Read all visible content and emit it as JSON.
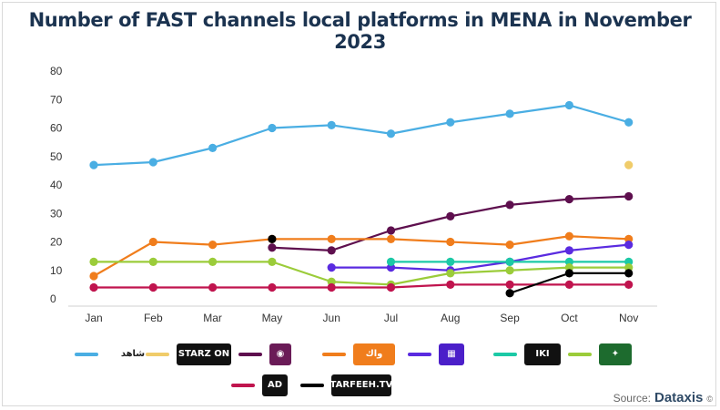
{
  "title": "Number of FAST channels local platforms in MENA in November 2023",
  "source": {
    "label": "Source:",
    "brand": "Dataxis",
    "mark": "©"
  },
  "chart_data": {
    "type": "line",
    "title": "Number of FAST channels local platforms in MENA in November 2023",
    "categories": [
      "Jan",
      "Feb",
      "Mar",
      "May",
      "Jun",
      "Jul",
      "Aug",
      "Sep",
      "Oct",
      "Nov"
    ],
    "ylim": [
      0,
      80
    ],
    "yticks": [
      0,
      10,
      20,
      30,
      40,
      50,
      60,
      70,
      80
    ],
    "grid": false,
    "legend_position": "bottom",
    "series": [
      {
        "id": "shahid",
        "color": "#4aaee3",
        "values": [
          47,
          48,
          53,
          60,
          61,
          58,
          62,
          65,
          68,
          62
        ]
      },
      {
        "id": "starzon",
        "color": "#f0cc6a",
        "values": [
          null,
          null,
          null,
          null,
          null,
          null,
          null,
          null,
          null,
          47
        ]
      },
      {
        "id": "purple_brand",
        "color": "#5e0f4e",
        "values": [
          null,
          null,
          null,
          18,
          17,
          24,
          29,
          33,
          35,
          36
        ]
      },
      {
        "id": "orange_brand",
        "color": "#f07d1c",
        "values": [
          8,
          20,
          19,
          21,
          21,
          21,
          20,
          19,
          22,
          21
        ]
      },
      {
        "id": "indigo_brand",
        "color": "#5a2be0",
        "values": [
          null,
          null,
          null,
          null,
          11,
          11,
          10,
          13,
          17,
          19
        ]
      },
      {
        "id": "teal_brand",
        "color": "#1cc9a6",
        "values": [
          null,
          null,
          null,
          null,
          null,
          13,
          13,
          13,
          13,
          13
        ]
      },
      {
        "id": "green_brand",
        "color": "#9bcc3a",
        "values": [
          13,
          13,
          13,
          13,
          6,
          5,
          9,
          10,
          11,
          11
        ]
      },
      {
        "id": "ad",
        "color": "#c0144e",
        "values": [
          4,
          4,
          4,
          4,
          4,
          4,
          5,
          5,
          5,
          5
        ]
      },
      {
        "id": "tarfeeh",
        "color": "#000000",
        "values": [
          null,
          null,
          null,
          21,
          null,
          null,
          null,
          2,
          9,
          9
        ]
      }
    ]
  },
  "legend": [
    {
      "series": "shahid",
      "logo_text": "شاهد",
      "logo_bg": "#ffffff",
      "logo_fg": "#1a1a1a"
    },
    {
      "series": "starzon",
      "logo_text": "STARZ ON",
      "logo_bg": "#111111",
      "logo_fg": "#ffffff"
    },
    {
      "series": "purple_brand",
      "logo_text": "◉",
      "logo_bg": "#6a1b57",
      "logo_fg": "#ffffff"
    },
    {
      "series": "orange_brand",
      "logo_text": "واك",
      "logo_bg": "#f07d1c",
      "logo_fg": "#ffffff"
    },
    {
      "series": "indigo_brand",
      "logo_text": "▦",
      "logo_bg": "#4b1fc9",
      "logo_fg": "#ffffff"
    },
    {
      "series": "teal_brand",
      "logo_text": "IKI",
      "logo_bg": "#111111",
      "logo_fg": "#ffffff"
    },
    {
      "series": "green_brand",
      "logo_text": "✦",
      "logo_bg": "#1d6b2e",
      "logo_fg": "#ffffff"
    },
    {
      "series": "ad",
      "logo_text": "AD",
      "logo_bg": "#111111",
      "logo_fg": "#ffffff"
    },
    {
      "series": "tarfeeh",
      "logo_text": "TARFEEH.TV",
      "logo_bg": "#111111",
      "logo_fg": "#ffffff"
    }
  ]
}
